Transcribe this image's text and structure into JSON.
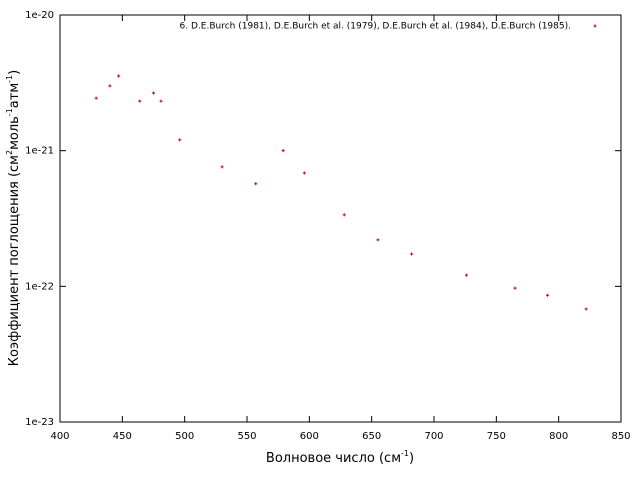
{
  "chart_data": {
    "type": "scatter",
    "xlabel": [
      "Волновое число (см",
      "-1",
      ")"
    ],
    "ylabel": [
      "Коэффициент поглощения (см",
      "2",
      "моль",
      "-1",
      "атм",
      "-1",
      ")"
    ],
    "series": [
      {
        "name": "6. D.E.Burch (1981), D.E.Burch et al. (1979), D.E.Burch et al. (1984), D.E.Burch (1985).",
        "color": "#cc0000",
        "x": [
          429,
          440,
          447,
          464,
          475,
          481,
          496,
          530,
          557,
          579,
          596,
          628,
          655,
          682,
          726,
          765,
          791,
          822
        ],
        "values": [
          2.44e-21,
          3e-21,
          3.55e-21,
          2.32e-21,
          2.66e-21,
          2.32e-21,
          1.2e-21,
          7.6e-22,
          5.7e-22,
          1e-21,
          6.85e-22,
          3.36e-22,
          2.2e-22,
          1.73e-22,
          1.21e-22,
          9.7e-23,
          8.6e-23,
          6.8e-23
        ]
      }
    ],
    "xlim": [
      400,
      850
    ],
    "xticks": [
      400,
      450,
      500,
      550,
      600,
      650,
      700,
      750,
      800,
      850
    ],
    "ylim": [
      1e-23,
      1e-20
    ],
    "log_y": true,
    "yticks": [
      {
        "value": 1e-23,
        "label": "1e-23"
      },
      {
        "value": 1e-22,
        "label": "1e-22"
      },
      {
        "value": 1e-21,
        "label": "1e-21"
      },
      {
        "value": 1e-20,
        "label": "1e-20"
      }
    ],
    "legend": "top-right"
  }
}
